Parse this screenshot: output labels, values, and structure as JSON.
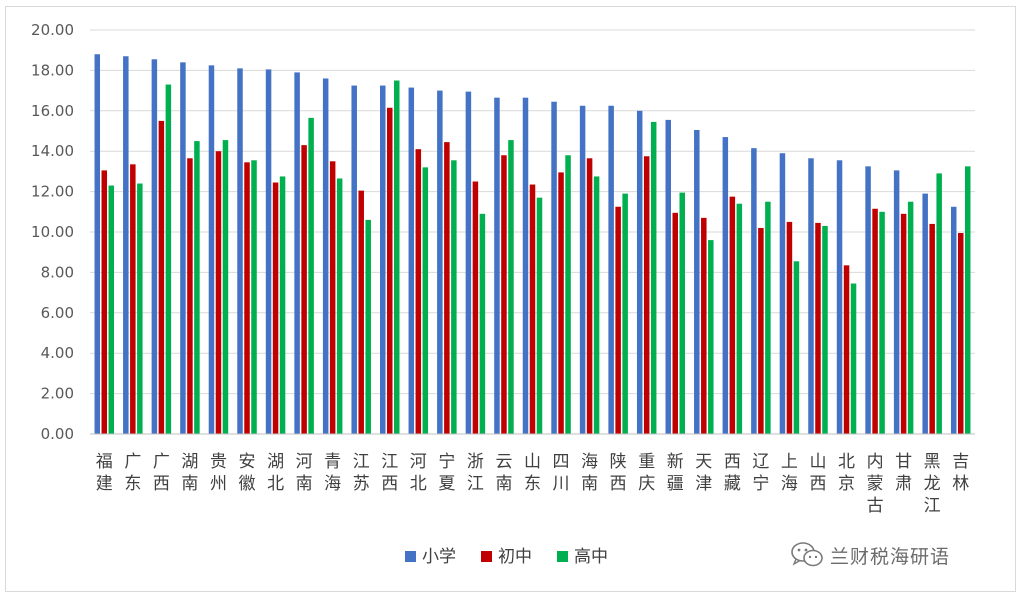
{
  "chart_data": {
    "type": "bar",
    "title": "",
    "xlabel": "",
    "ylabel": "",
    "ylim": [
      0,
      20
    ],
    "yticks": [
      "0.00",
      "2.00",
      "4.00",
      "6.00",
      "8.00",
      "10.00",
      "12.00",
      "14.00",
      "16.00",
      "18.00",
      "20.00"
    ],
    "grid": true,
    "legend_position": "bottom",
    "categories": [
      "福建",
      "广东",
      "广西",
      "湖南",
      "贵州",
      "安徽",
      "湖北",
      "河南",
      "青海",
      "江苏",
      "江西",
      "河北",
      "宁夏",
      "浙江",
      "云南",
      "山东",
      "四川",
      "海南",
      "陕西",
      "重庆",
      "新疆",
      "天津",
      "西藏",
      "辽宁",
      "上海",
      "山西",
      "北京",
      "内蒙古",
      "甘肃",
      "黑龙江",
      "吉林"
    ],
    "series": [
      {
        "name": "小学",
        "color": "#4472c4",
        "values": [
          18.8,
          18.7,
          18.55,
          18.4,
          18.25,
          18.1,
          18.05,
          17.9,
          17.6,
          17.25,
          17.25,
          17.15,
          17.0,
          16.95,
          16.65,
          16.65,
          16.45,
          16.25,
          16.25,
          16.0,
          15.55,
          15.05,
          14.7,
          14.15,
          13.9,
          13.65,
          13.55,
          13.25,
          13.05,
          11.9,
          11.25
        ]
      },
      {
        "name": "初中",
        "color": "#c00000",
        "values": [
          13.05,
          13.35,
          15.5,
          13.65,
          14.0,
          13.45,
          12.45,
          14.3,
          13.5,
          12.05,
          16.15,
          14.1,
          14.45,
          12.5,
          13.8,
          12.35,
          12.95,
          13.65,
          11.25,
          13.75,
          10.95,
          10.7,
          11.75,
          10.2,
          10.5,
          10.45,
          8.35,
          11.15,
          10.9,
          10.4,
          9.95
        ]
      },
      {
        "name": "高中",
        "color": "#00b050",
        "values": [
          12.3,
          12.4,
          17.3,
          14.5,
          14.55,
          13.55,
          12.75,
          15.65,
          12.65,
          10.6,
          17.5,
          13.2,
          13.55,
          10.9,
          14.55,
          11.7,
          13.8,
          12.75,
          11.9,
          15.45,
          11.95,
          9.6,
          11.4,
          11.5,
          8.55,
          10.3,
          7.45,
          11.0,
          11.5,
          12.9,
          13.25
        ]
      }
    ]
  },
  "watermark": {
    "text": "兰财税海研语",
    "icon": "wechat-icon"
  }
}
